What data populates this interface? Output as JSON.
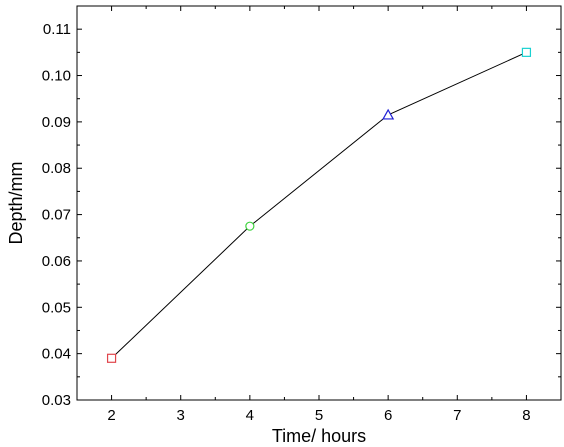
{
  "chart_data": {
    "type": "line",
    "xlabel": "Time/ hours",
    "ylabel": "Depth/mm",
    "xlim": [
      1.5,
      8.5
    ],
    "ylim": [
      0.03,
      0.115
    ],
    "x_ticks": [
      2,
      3,
      4,
      5,
      6,
      7,
      8
    ],
    "y_ticks": [
      0.03,
      0.04,
      0.05,
      0.06,
      0.07,
      0.08,
      0.09,
      0.1,
      0.11
    ],
    "x_tick_labels": [
      "2",
      "3",
      "4",
      "5",
      "6",
      "7",
      "8"
    ],
    "y_tick_labels": [
      "0.03",
      "0.04",
      "0.05",
      "0.06",
      "0.07",
      "0.08",
      "0.09",
      "0.10",
      "0.11"
    ],
    "grid": false,
    "series": [
      {
        "x": [
          2,
          4,
          6,
          8
        ],
        "y": [
          0.039,
          0.0675,
          0.0915,
          0.105
        ],
        "line_color": "#000000",
        "markers": [
          {
            "shape": "square",
            "color": "#e0454b"
          },
          {
            "shape": "circle",
            "color": "#3fd43f"
          },
          {
            "shape": "triangle",
            "color": "#1f1fd6"
          },
          {
            "shape": "square",
            "color": "#19d1d1"
          }
        ]
      }
    ]
  }
}
